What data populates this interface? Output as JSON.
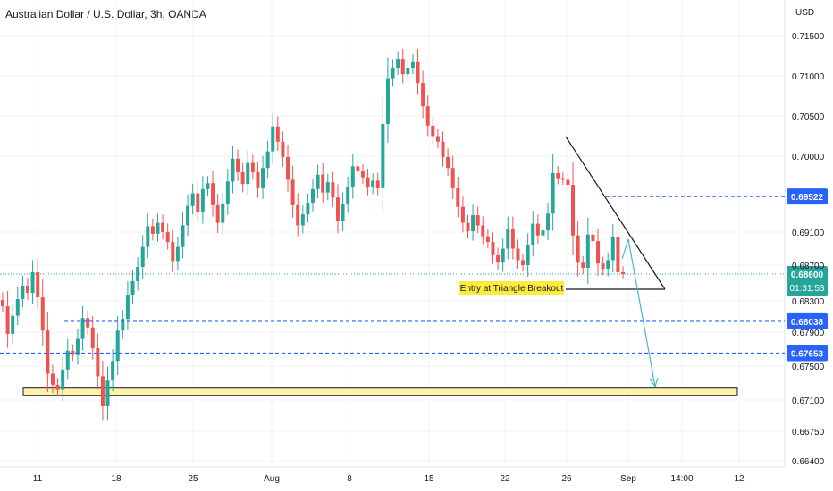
{
  "title": "Australian Dollar / U.S. Dollar, 3h, OANDA",
  "currency": "USD",
  "colors": {
    "up": "#26a69a",
    "down": "#ef5350",
    "level_line": "#2962ff",
    "label_bg": "#2962ff",
    "last_price_bg": "#26a69a",
    "support_zone": "#fff2a8",
    "annotation_bg": "#ffeb3b",
    "arrow": "#4db6c4"
  },
  "chart_data": {
    "type": "candlestick",
    "symbol": "AUDUSD",
    "timeframe": "3h",
    "y_ticks": [
      "0.71500",
      "0.71000",
      "0.70500",
      "0.70000",
      "0.69100",
      "0.68700",
      "0.68300",
      "0.67900",
      "0.67500",
      "0.67100",
      "0.66750",
      "0.66400"
    ],
    "x_ticks": [
      "11",
      "18",
      "25",
      "Aug",
      "8",
      "15",
      "22",
      "26",
      "Sep",
      "14:00",
      "12"
    ],
    "price_levels": [
      {
        "value": "0.69522",
        "style": "dashed"
      },
      {
        "value": "0.68038",
        "style": "dashed"
      },
      {
        "value": "0.67653",
        "style": "dashed"
      }
    ],
    "last_price": {
      "value": "0.68600",
      "countdown": "01:31:53"
    },
    "annotation": "Entry at Triangle Breakout",
    "support_zone": {
      "from": 0.6715,
      "to": 0.6724
    },
    "closes": [
      0.6823,
      0.6788,
      0.6811,
      0.6832,
      0.6847,
      0.6839,
      0.6862,
      0.6834,
      0.6792,
      0.6741,
      0.6728,
      0.6722,
      0.6746,
      0.6768,
      0.6763,
      0.6782,
      0.6808,
      0.6796,
      0.6771,
      0.6738,
      0.6703,
      0.6733,
      0.6756,
      0.6792,
      0.6807,
      0.6836,
      0.6852,
      0.6868,
      0.6892,
      0.6917,
      0.6908,
      0.6921,
      0.691,
      0.6898,
      0.6875,
      0.6892,
      0.6918,
      0.6941,
      0.6956,
      0.6934,
      0.6961,
      0.6968,
      0.6942,
      0.6921,
      0.6944,
      0.697,
      0.6997,
      0.6981,
      0.6967,
      0.6992,
      0.6981,
      0.6962,
      0.6986,
      0.7006,
      0.7037,
      0.7018,
      0.6999,
      0.6972,
      0.6942,
      0.6918,
      0.6931,
      0.6945,
      0.6961,
      0.6978,
      0.6957,
      0.6969,
      0.6951,
      0.6923,
      0.6944,
      0.6963,
      0.6988,
      0.6982,
      0.6975,
      0.6963,
      0.6971,
      0.6962,
      0.704,
      0.7097,
      0.711,
      0.7121,
      0.7102,
      0.711,
      0.7118,
      0.7091,
      0.7062,
      0.7038,
      0.7025,
      0.7018,
      0.6999,
      0.6986,
      0.6962,
      0.694,
      0.6921,
      0.6911,
      0.693,
      0.6918,
      0.6905,
      0.6898,
      0.6882,
      0.6873,
      0.689,
      0.6914,
      0.689,
      0.6876,
      0.687,
      0.6894,
      0.692,
      0.6906,
      0.6912,
      0.6932,
      0.698,
      0.6974,
      0.6972,
      0.6966,
      0.6906,
      0.6873,
      0.6867,
      0.6907,
      0.6899,
      0.6872,
      0.6866,
      0.6876,
      0.6904,
      0.6862,
      0.686
    ]
  }
}
